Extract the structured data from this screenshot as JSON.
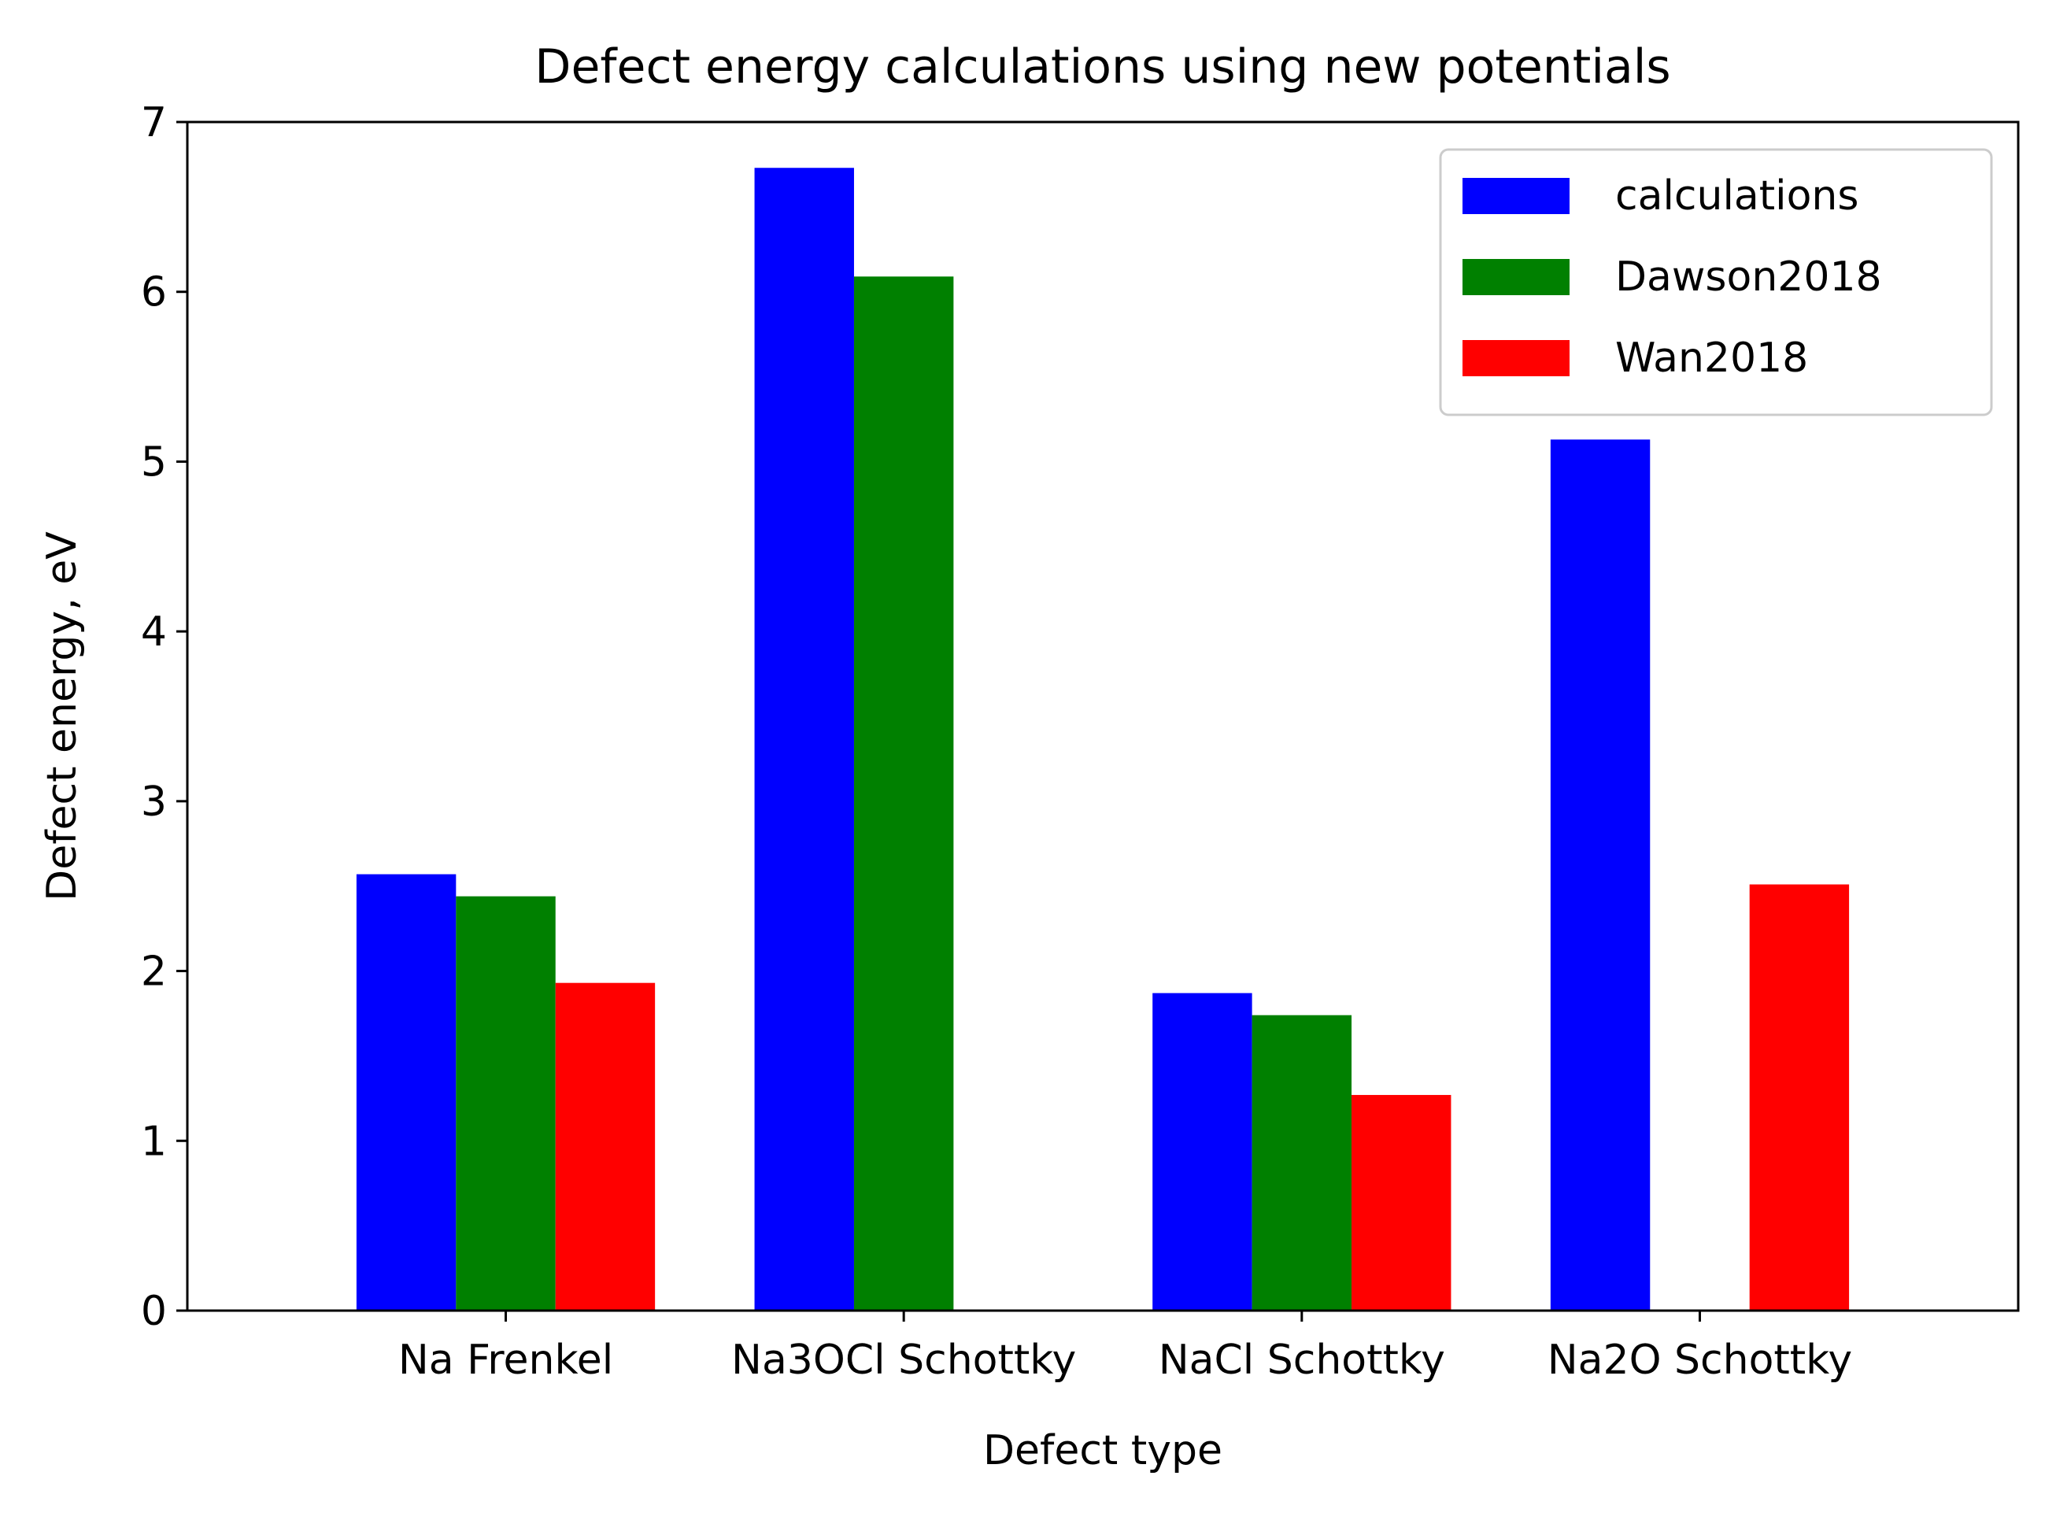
{
  "chart_data": {
    "type": "bar",
    "title": "Defect energy calculations using new potentials",
    "xlabel": "Defect type",
    "ylabel": "Defect energy, eV",
    "categories": [
      "Na Frenkel",
      "Na3OCl Schottky",
      "NaCl Schottky",
      "Na2O Schottky"
    ],
    "series": [
      {
        "name": "calculations",
        "color": "#0000ff",
        "values": [
          2.57,
          6.73,
          1.87,
          5.13
        ]
      },
      {
        "name": "Dawson2018",
        "color": "#008000",
        "values": [
          2.44,
          6.09,
          1.74,
          null
        ]
      },
      {
        "name": "Wan2018",
        "color": "#ff0000",
        "values": [
          1.93,
          null,
          1.27,
          2.51
        ]
      }
    ],
    "ylim": [
      0,
      7
    ],
    "yticks": [
      0,
      1,
      2,
      3,
      4,
      5,
      6,
      7
    ],
    "grid": false,
    "legend_position": "top-right"
  }
}
